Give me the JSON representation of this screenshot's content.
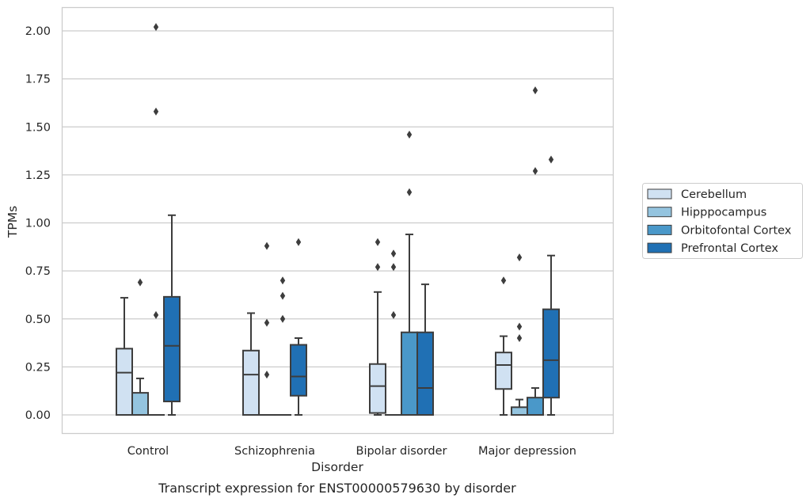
{
  "chart_data": {
    "type": "box",
    "title": "",
    "caption": "Transcript expression for ENST00000579630 by disorder",
    "xlabel": "Disorder",
    "ylabel": "TPMs",
    "ylim": [
      -0.1,
      2.13
    ],
    "yticks": [
      "0.00",
      "0.25",
      "0.50",
      "0.75",
      "1.00",
      "1.25",
      "1.50",
      "1.75",
      "2.00"
    ],
    "grid": "horizontal",
    "legend_position": "right",
    "categories": [
      "Control",
      "Schizophrenia",
      "Bipolar disorder",
      "Major depression"
    ],
    "series": [
      {
        "name": "Cerebellum",
        "color": "#d0e1f2",
        "boxes": [
          {
            "whisker_low": 0.0,
            "q1": 0.0,
            "median": 0.22,
            "q3": 0.345,
            "whisker_high": 0.61,
            "outliers": []
          },
          {
            "whisker_low": 0.0,
            "q1": 0.0,
            "median": 0.21,
            "q3": 0.335,
            "whisker_high": 0.53,
            "outliers": []
          },
          {
            "whisker_low": 0.0,
            "q1": 0.01,
            "median": 0.15,
            "q3": 0.265,
            "whisker_high": 0.64,
            "outliers": [
              0.77,
              0.9
            ]
          },
          {
            "whisker_low": 0.0,
            "q1": 0.135,
            "median": 0.26,
            "q3": 0.325,
            "whisker_high": 0.41,
            "outliers": [
              0.7
            ]
          }
        ]
      },
      {
        "name": "Hipppocampus",
        "color": "#94c4df",
        "boxes": [
          {
            "whisker_low": 0.0,
            "q1": 0.0,
            "median": 0.0,
            "q3": 0.115,
            "whisker_high": 0.19,
            "outliers": [
              0.69
            ]
          },
          {
            "whisker_low": 0.0,
            "q1": 0.0,
            "median": 0.0,
            "q3": 0.0,
            "whisker_high": 0.0,
            "outliers": [
              0.21,
              0.48,
              0.88
            ]
          },
          {
            "whisker_low": 0.0,
            "q1": 0.0,
            "median": 0.0,
            "q3": 0.0,
            "whisker_high": 0.0,
            "outliers": [
              0.52,
              0.77,
              0.84
            ]
          },
          {
            "whisker_low": 0.0,
            "q1": 0.0,
            "median": 0.0,
            "q3": 0.04,
            "whisker_high": 0.08,
            "outliers": [
              0.4,
              0.46,
              0.82
            ]
          }
        ]
      },
      {
        "name": "Orbitofontal Cortex",
        "color": "#4a98c9",
        "boxes": [
          {
            "whisker_low": 0.0,
            "q1": 0.0,
            "median": 0.0,
            "q3": 0.0,
            "whisker_high": 0.0,
            "outliers": [
              0.52,
              1.58,
              2.02
            ]
          },
          {
            "whisker_low": 0.0,
            "q1": 0.0,
            "median": 0.0,
            "q3": 0.0,
            "whisker_high": 0.0,
            "outliers": [
              0.5,
              0.62,
              0.7
            ]
          },
          {
            "whisker_low": 0.0,
            "q1": 0.0,
            "median": 0.0,
            "q3": 0.43,
            "whisker_high": 0.94,
            "outliers": [
              1.16,
              1.46
            ]
          },
          {
            "whisker_low": 0.0,
            "q1": 0.0,
            "median": 0.0,
            "q3": 0.09,
            "whisker_high": 0.14,
            "outliers": [
              1.27,
              1.69
            ]
          }
        ]
      },
      {
        "name": "Prefrontal Cortex",
        "color": "#2070b4",
        "boxes": [
          {
            "whisker_low": 0.0,
            "q1": 0.07,
            "median": 0.36,
            "q3": 0.615,
            "whisker_high": 1.04,
            "outliers": []
          },
          {
            "whisker_low": 0.0,
            "q1": 0.1,
            "median": 0.2,
            "q3": 0.365,
            "whisker_high": 0.4,
            "outliers": [
              0.9
            ]
          },
          {
            "whisker_low": 0.0,
            "q1": 0.0,
            "median": 0.14,
            "q3": 0.43,
            "whisker_high": 0.68,
            "outliers": []
          },
          {
            "whisker_low": 0.0,
            "q1": 0.09,
            "median": 0.285,
            "q3": 0.55,
            "whisker_high": 0.83,
            "outliers": [
              1.33
            ]
          }
        ]
      }
    ]
  }
}
